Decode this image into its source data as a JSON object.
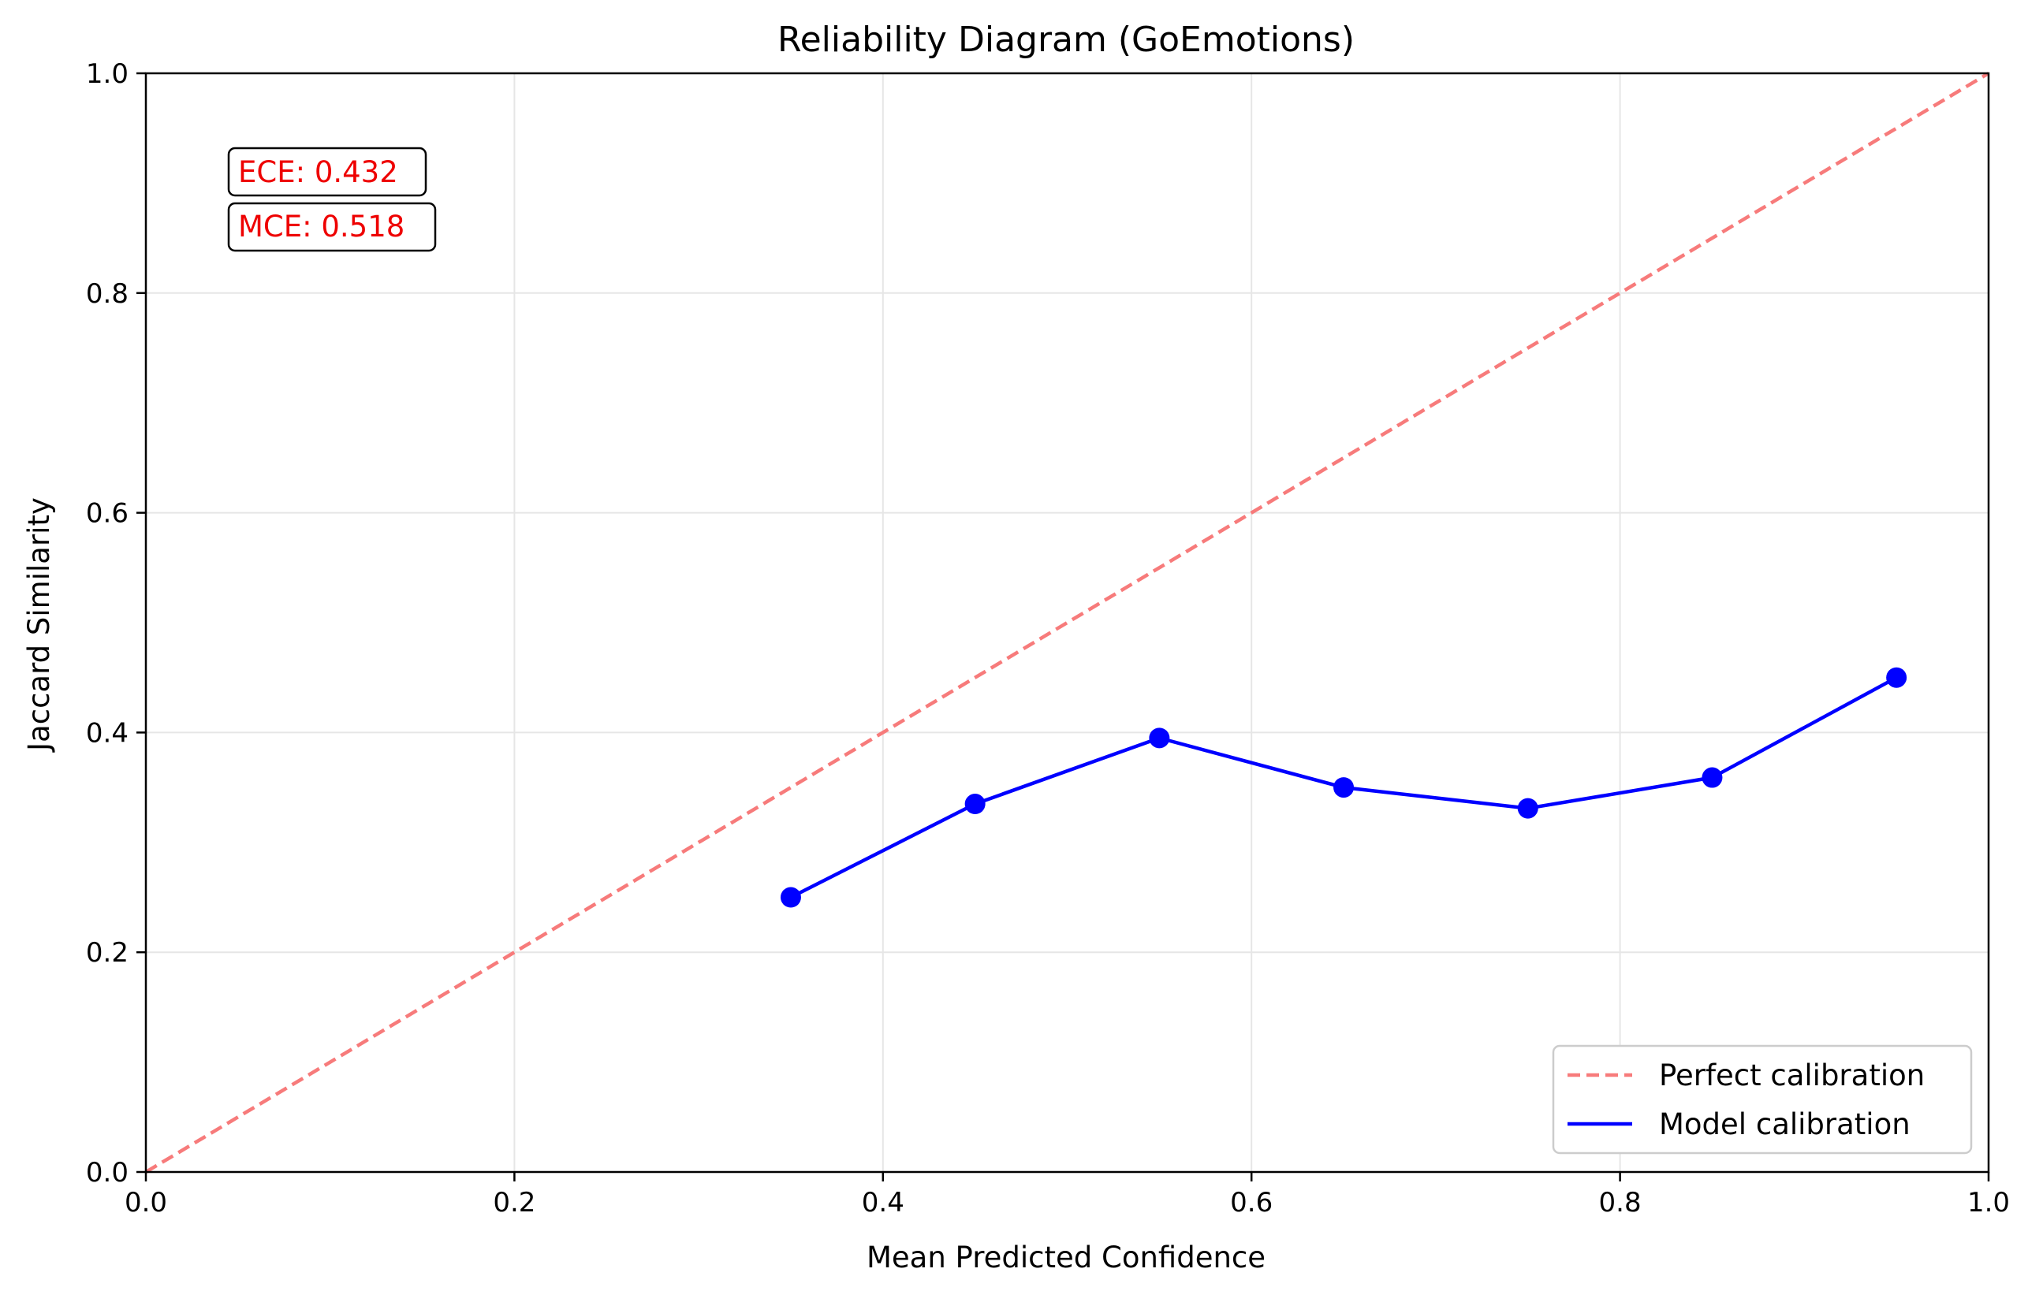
{
  "chart_data": {
    "type": "line",
    "title": "Reliability Diagram (GoEmotions)",
    "xlabel": "Mean Predicted Confidence",
    "ylabel": "Jaccard Similarity",
    "xlim": [
      0.0,
      1.0
    ],
    "ylim": [
      0.0,
      1.0
    ],
    "xticks": [
      "0.0",
      "0.2",
      "0.4",
      "0.6",
      "0.8",
      "1.0"
    ],
    "yticks": [
      "0.0",
      "0.2",
      "0.4",
      "0.6",
      "0.8",
      "1.0"
    ],
    "grid": true,
    "legend_position": "bottom-right",
    "series": [
      {
        "name": "Perfect calibration",
        "style": "dashed",
        "color": "#f77b7b",
        "x": [
          0.0,
          1.0
        ],
        "y": [
          0.0,
          1.0
        ]
      },
      {
        "name": "Model calibration",
        "style": "solid-markers",
        "color": "#0000ff",
        "x": [
          0.35,
          0.45,
          0.55,
          0.65,
          0.75,
          0.85,
          0.95
        ],
        "y": [
          0.25,
          0.335,
          0.395,
          0.35,
          0.331,
          0.359,
          0.45
        ]
      }
    ],
    "annotations": [
      {
        "text": "ECE: 0.432",
        "color": "#ee0000"
      },
      {
        "text": "MCE: 0.518",
        "color": "#ee0000"
      }
    ]
  }
}
